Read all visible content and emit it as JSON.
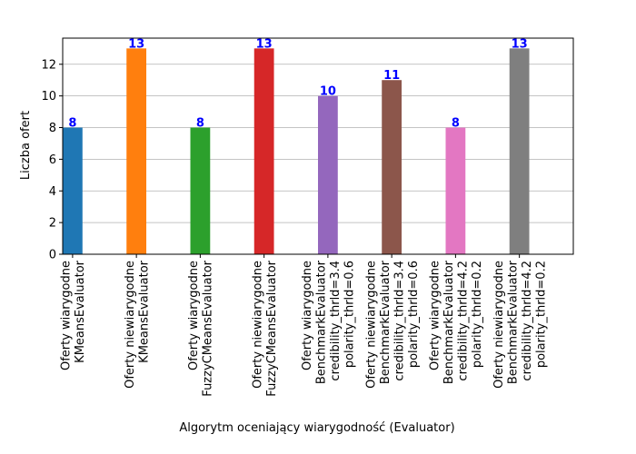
{
  "chart_data": {
    "type": "bar",
    "categories": [
      [
        "Oferty wiarygodne",
        "KMeansEvaluator"
      ],
      [
        "Oferty niewiarygodne",
        "KMeansEvaluator"
      ],
      [
        "Oferty wiarygodne",
        "FuzzyCMeansEvaluator"
      ],
      [
        "Oferty niewiarygodne",
        "FuzzyCMeansEvaluator"
      ],
      [
        "Oferty wiarygodne",
        "BenchmarkEvaluator",
        "credibility_thrld=3.4",
        "polarity_thrld=0.6"
      ],
      [
        "Oferty niewiarygodne",
        "BenchmarkEvaluator",
        "credibility_thrld=3.4",
        "polarity_thrld=0.6"
      ],
      [
        "Oferty wiarygodne",
        "BenchmarkEvaluator",
        "credibility_thrld=4.2",
        "polarity_thrld=0.2"
      ],
      [
        "Oferty niewiarygodne",
        "BenchmarkEvaluator",
        "credibility_thrld=4.2",
        "polarity_thrld=0.2"
      ]
    ],
    "values": [
      8,
      13,
      8,
      13,
      10,
      11,
      8,
      13
    ],
    "colors": [
      "#1f77b4",
      "#ff7f0e",
      "#2ca02c",
      "#d62728",
      "#9467bd",
      "#8c564b",
      "#e377c2",
      "#7f7f7f"
    ],
    "data_label_color": "#0000ff",
    "xlabel": "Algorytm oceniający wiarygodność (Evaluator)",
    "ylabel": "Liczba ofert",
    "yticks": [
      0,
      2,
      4,
      6,
      8,
      10,
      12
    ],
    "ylim": [
      0,
      13.65
    ],
    "grid": "horizontal"
  }
}
